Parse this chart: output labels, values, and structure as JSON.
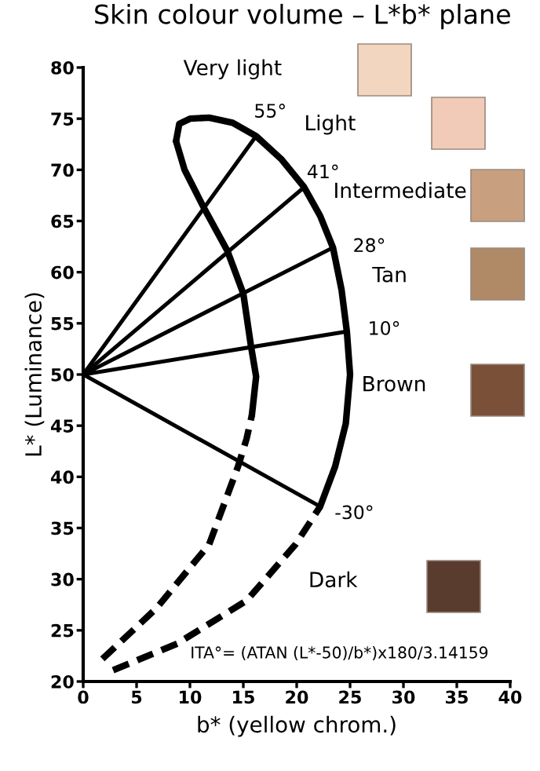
{
  "chart_data": {
    "type": "line",
    "title": "Skin colour volume – L*b* plane",
    "xlabel": "b* (yellow chrom.)",
    "ylabel": "L* (Luminance)",
    "xlim": [
      0,
      40
    ],
    "ylim": [
      20,
      80
    ],
    "xticks": [
      0,
      5,
      10,
      15,
      20,
      25,
      30,
      35,
      40
    ],
    "yticks": [
      20,
      25,
      30,
      35,
      40,
      45,
      50,
      55,
      60,
      65,
      70,
      75,
      80
    ],
    "grid": false,
    "marker": "none",
    "series": [
      {
        "color": "#000000",
        "line_style": "solid",
        "x": [
          8.7,
          9.0,
          10.0,
          11.8,
          14.0,
          16.2,
          18.6,
          20.7,
          22.2,
          23.4,
          24.2,
          24.7,
          25.0,
          24.6,
          23.6,
          22.2
        ],
        "values": [
          72.8,
          74.5,
          75.0,
          75.1,
          74.6,
          73.3,
          71.0,
          68.3,
          65.5,
          62.4,
          58.3,
          54.2,
          50.0,
          45.2,
          41.0,
          37.1
        ]
      },
      {
        "color": "#000000",
        "line_style": "dashed",
        "x": [
          2.8,
          8.8,
          15.3,
          19.9,
          22.2
        ],
        "values": [
          21.1,
          23.7,
          27.9,
          33.4,
          37.1
        ]
      },
      {
        "color": "#000000",
        "line_style": "solid",
        "x": [
          8.7,
          9.5,
          11.3,
          13.5,
          15.0,
          15.7,
          16.2,
          15.8
        ],
        "values": [
          72.8,
          70.0,
          66.3,
          62.1,
          57.9,
          52.9,
          49.8,
          46.0
        ]
      },
      {
        "color": "#000000",
        "line_style": "dashed",
        "x": [
          1.8,
          6.9,
          11.8,
          14.5,
          15.3,
          15.8
        ],
        "values": [
          22.2,
          27.2,
          33.4,
          41.0,
          43.7,
          46.0
        ]
      },
      {
        "color": "#000000",
        "line_style": "solid",
        "x": [
          0,
          16.2
        ],
        "values": [
          50,
          73.3
        ]
      },
      {
        "color": "#000000",
        "line_style": "solid",
        "x": [
          0,
          20.7
        ],
        "values": [
          50,
          68.3
        ]
      },
      {
        "color": "#000000",
        "line_style": "solid",
        "x": [
          0,
          23.4
        ],
        "values": [
          50,
          62.4
        ]
      },
      {
        "color": "#000000",
        "line_style": "solid",
        "x": [
          0,
          24.7
        ],
        "values": [
          50,
          54.2
        ]
      },
      {
        "color": "#000000",
        "line_style": "solid",
        "x": [
          0,
          22.2
        ],
        "values": [
          50,
          37.1
        ]
      }
    ],
    "annotations": [
      "Very light",
      "Light",
      "Intermediate",
      "Tan",
      "Brown",
      "Dark",
      "55°",
      "41°",
      "28°",
      "10°",
      "-30°",
      "ITA°= (ATAN (L*-50)/b*)x180/3.14159"
    ]
  }
}
